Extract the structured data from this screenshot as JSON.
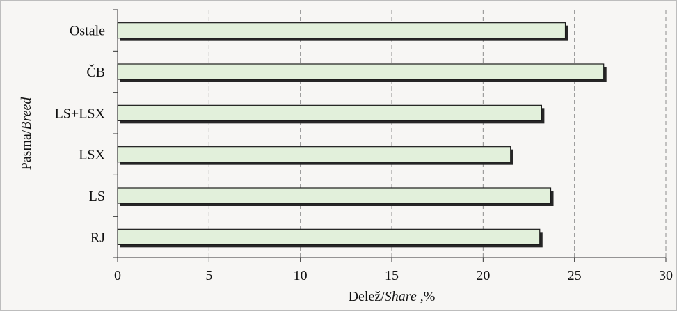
{
  "chart_data": {
    "type": "bar",
    "orientation": "horizontal",
    "categories": [
      "Ostale",
      "ČB",
      "LS+LSX",
      "LSX",
      "LS",
      "RJ"
    ],
    "values": [
      24.5,
      26.6,
      23.2,
      21.5,
      23.7,
      23.1
    ],
    "xlim": [
      0,
      30
    ],
    "xticks": [
      "0",
      "5",
      "10",
      "15",
      "20",
      "25",
      "30"
    ],
    "xlabel": {
      "main": "Delež/",
      "italic": "Share",
      "suffix": " ,%"
    },
    "ylabel": {
      "main": "Pasma/",
      "italic": "Breed"
    },
    "grid": "vertical-dashed",
    "bar_fill": "#e2f0db",
    "bar_stroke": "#1a1a1a",
    "shadow_color": "#262626",
    "plot_background": "#f7f6f4"
  }
}
